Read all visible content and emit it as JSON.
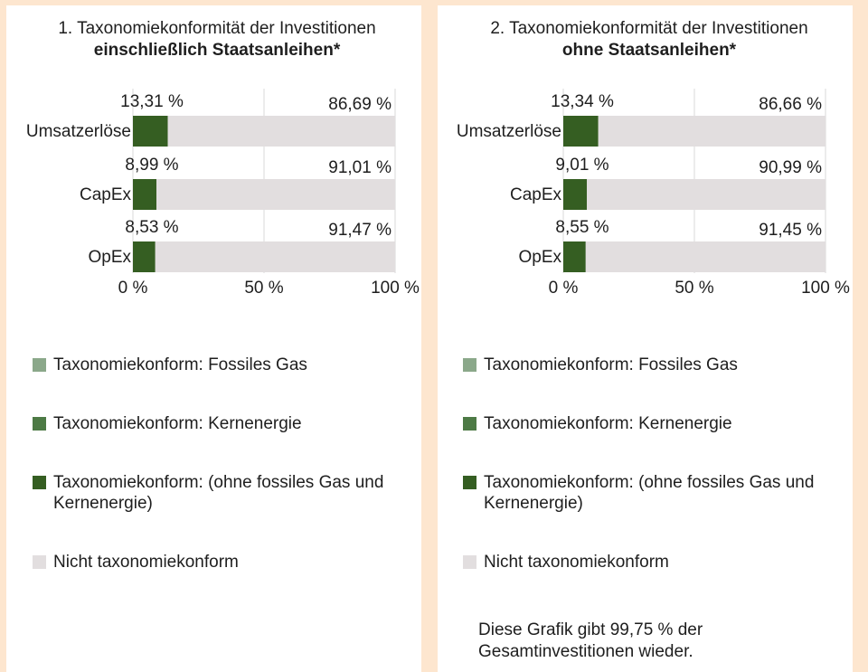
{
  "chart_data": [
    {
      "type": "bar",
      "orientation": "horizontal",
      "stacked": true,
      "title": "1. Taxonomiekonformität der Investitionen",
      "title_bold": "einschließlich Staatsanleihen*",
      "categories": [
        "Umsatzerlöse",
        "CapEx",
        "OpEx"
      ],
      "series": [
        {
          "name": "Taxonomiekonform: Fossiles Gas",
          "color": "#8ba88a",
          "values": [
            0,
            0,
            0
          ]
        },
        {
          "name": "Taxonomiekonform: Kernenergie",
          "color": "#4d7a45",
          "values": [
            0,
            0,
            0
          ]
        },
        {
          "name": "Taxonomiekonform: (ohne fossiles Gas und Kernenergie)",
          "color": "#355e22",
          "values": [
            13.31,
            8.99,
            8.53
          ],
          "value_labels": [
            "13,31 %",
            "8,99 %",
            "8,53 %"
          ]
        },
        {
          "name": "Nicht taxonomiekonform",
          "color": "#e2dedf",
          "values": [
            86.69,
            91.01,
            91.47
          ],
          "value_labels": [
            "86,69 %",
            "91,01 %",
            "91,47 %"
          ]
        }
      ],
      "xlim": [
        0,
        100
      ],
      "xticks": [
        {
          "value": 0,
          "label": "0 %"
        },
        {
          "value": 50,
          "label": "50 %"
        },
        {
          "value": 100,
          "label": "100 %"
        }
      ],
      "grid": true,
      "legend": "bottom"
    },
    {
      "type": "bar",
      "orientation": "horizontal",
      "stacked": true,
      "title": "2. Taxonomiekonformität der Investitionen",
      "title_bold": "ohne Staatsanleihen*",
      "categories": [
        "Umsatzerlöse",
        "CapEx",
        "OpEx"
      ],
      "series": [
        {
          "name": "Taxonomiekonform: Fossiles Gas",
          "color": "#8ba88a",
          "values": [
            0,
            0,
            0
          ]
        },
        {
          "name": "Taxonomiekonform: Kernenergie",
          "color": "#4d7a45",
          "values": [
            0,
            0,
            0
          ]
        },
        {
          "name": "Taxonomiekonform: (ohne fossiles Gas und Kernenergie)",
          "color": "#355e22",
          "values": [
            13.34,
            9.01,
            8.55
          ],
          "value_labels": [
            "13,34 %",
            "9,01 %",
            "8,55 %"
          ]
        },
        {
          "name": "Nicht taxonomiekonform",
          "color": "#e2dedf",
          "values": [
            86.66,
            90.99,
            91.45
          ],
          "value_labels": [
            "86,66 %",
            "90,99 %",
            "91,45 %"
          ]
        }
      ],
      "xlim": [
        0,
        100
      ],
      "xticks": [
        {
          "value": 0,
          "label": "0 %"
        },
        {
          "value": 50,
          "label": "50 %"
        },
        {
          "value": 100,
          "label": "100 %"
        }
      ],
      "grid": true,
      "legend": "bottom",
      "note": "Diese Grafik gibt 99,75 % der Gesamtinvestitionen wieder."
    }
  ]
}
